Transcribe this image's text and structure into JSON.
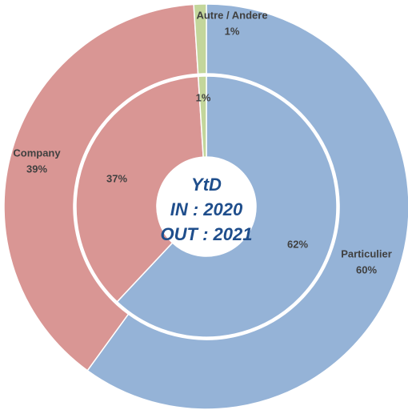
{
  "chart_data": {
    "type": "donut",
    "categories": [
      "Particulier",
      "Company",
      "Autre / Andere"
    ],
    "colors": [
      "#95b3d7",
      "#d99694",
      "#c3d69b"
    ],
    "series": [
      {
        "values": [
          60,
          39,
          1
        ],
        "value_labels": [
          "60%",
          "39%",
          "1%"
        ]
      },
      {
        "values": [
          62,
          37,
          1
        ],
        "value_labels": [
          "62%",
          "37%",
          "1%"
        ]
      }
    ],
    "center_text": [
      "YtD",
      "IN : 2020",
      "OUT : 2021"
    ]
  }
}
